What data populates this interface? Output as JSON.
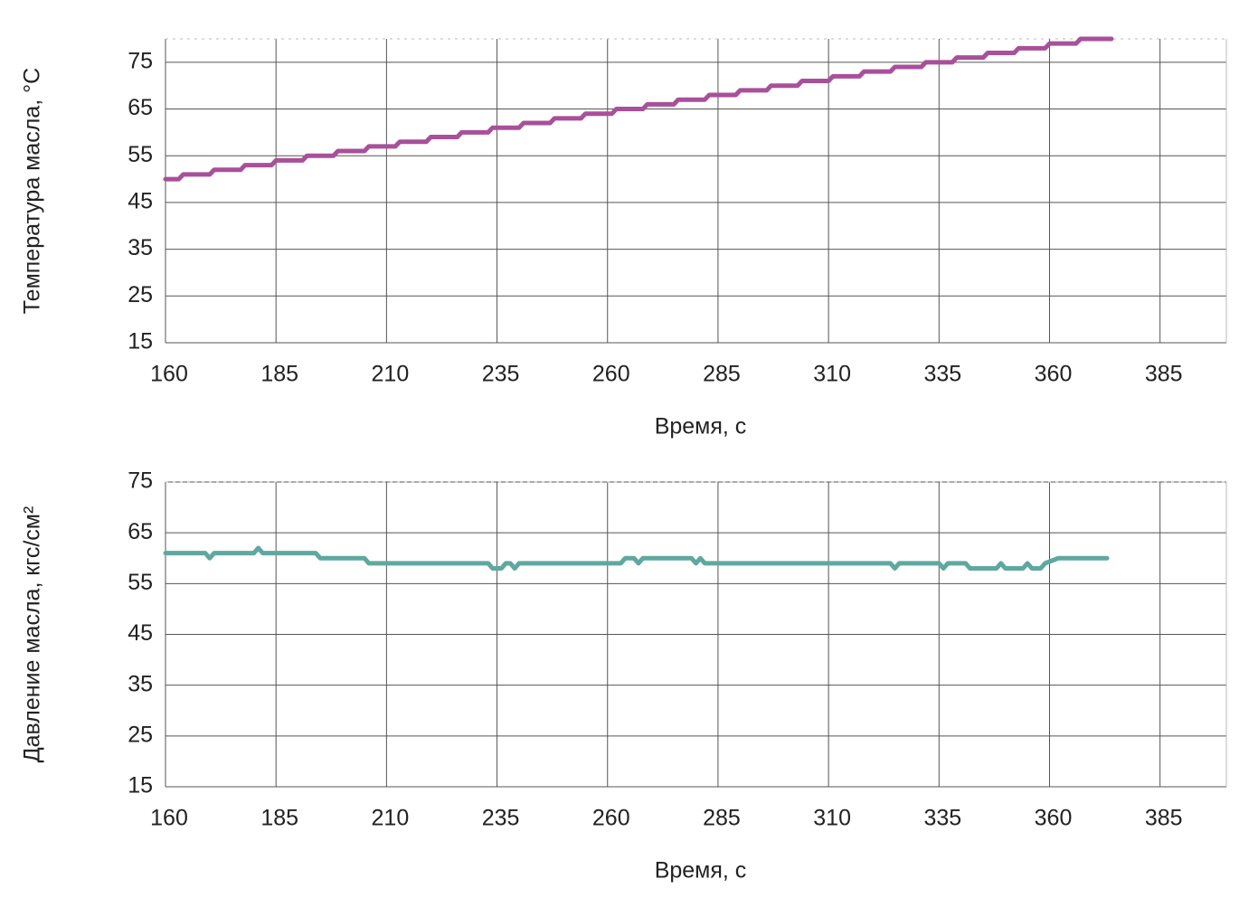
{
  "chart_data": [
    {
      "type": "line",
      "ylabel": "Температура масла, °С",
      "xlabel": "Время, с",
      "xlim": [
        160,
        400
      ],
      "xticks": [
        160,
        185,
        210,
        235,
        260,
        285,
        310,
        335,
        360,
        385
      ],
      "ylim": [
        15,
        80
      ],
      "yticks": [
        15,
        25,
        35,
        45,
        55,
        65,
        75
      ],
      "grid": true,
      "x": [
        160,
        163,
        164,
        170,
        171,
        177,
        178,
        184,
        185,
        191,
        192,
        198,
        199,
        205,
        206,
        212,
        213,
        219,
        220,
        226,
        227,
        233,
        234,
        240,
        241,
        247,
        248,
        254,
        255,
        261,
        262,
        268,
        269,
        275,
        276,
        282,
        283,
        289,
        290,
        296,
        297,
        303,
        304,
        310,
        311,
        317,
        318,
        324,
        325,
        331,
        332,
        338,
        339,
        345,
        346,
        352,
        353,
        359,
        360,
        366,
        367,
        374
      ],
      "series": [
        {
          "color": "#a8509a",
          "values": [
            50,
            50,
            51,
            51,
            52,
            52,
            53,
            53,
            54,
            54,
            55,
            55,
            56,
            56,
            57,
            57,
            58,
            58,
            59,
            59,
            60,
            60,
            61,
            61,
            62,
            62,
            63,
            63,
            64,
            64,
            65,
            65,
            66,
            66,
            67,
            67,
            68,
            68,
            69,
            69,
            70,
            70,
            71,
            71,
            72,
            72,
            73,
            73,
            74,
            74,
            75,
            75,
            76,
            76,
            77,
            77,
            78,
            78,
            79,
            79,
            80,
            80
          ]
        }
      ]
    },
    {
      "type": "line",
      "ylabel": "Давление масла, кгс/см²",
      "xlabel": "Время, с",
      "xlim": [
        160,
        400
      ],
      "xticks": [
        160,
        185,
        210,
        235,
        260,
        285,
        310,
        335,
        360,
        385
      ],
      "ylim": [
        15,
        75
      ],
      "yticks": [
        15,
        25,
        35,
        45,
        55,
        65,
        75
      ],
      "grid": true,
      "x": [
        160,
        169,
        170,
        171,
        180,
        181,
        182,
        194,
        195,
        205,
        206,
        233,
        234,
        236,
        237,
        238,
        239,
        240,
        263,
        264,
        266,
        267,
        268,
        279,
        280,
        281,
        282,
        324,
        325,
        326,
        335,
        336,
        337,
        341,
        342,
        348,
        349,
        350,
        354,
        355,
        356,
        358,
        359,
        362,
        373
      ],
      "series": [
        {
          "color": "#5fa8a0",
          "values": [
            61,
            61,
            60,
            61,
            61,
            62,
            61,
            61,
            60,
            60,
            59,
            59,
            58,
            58,
            59,
            59,
            58,
            59,
            59,
            60,
            60,
            59,
            60,
            60,
            59,
            60,
            59,
            59,
            58,
            59,
            59,
            58,
            59,
            59,
            58,
            58,
            59,
            58,
            58,
            59,
            58,
            58,
            59,
            60,
            60
          ]
        }
      ]
    }
  ]
}
